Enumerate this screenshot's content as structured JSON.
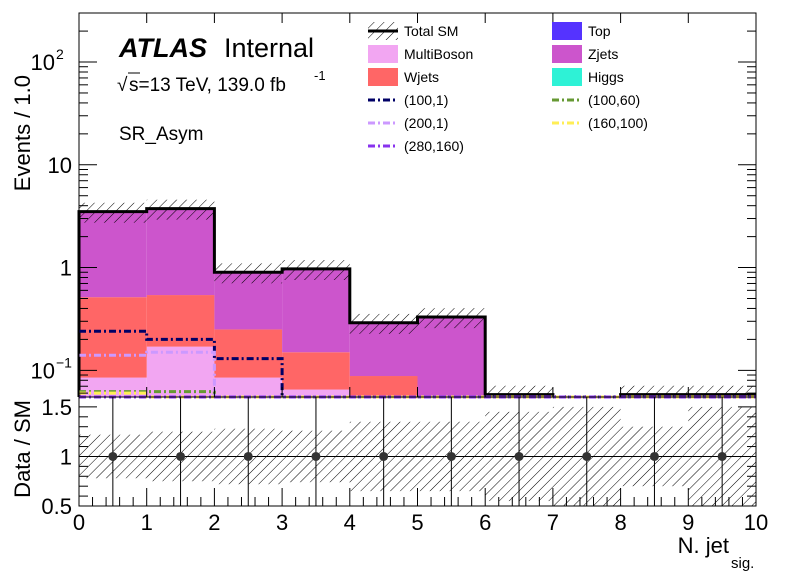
{
  "chart_data": [
    {
      "type": "bar",
      "panel": "main",
      "stacked": true,
      "ylabel": "Events / 1.0",
      "yscale": "log",
      "ylim": [
        0.055,
        300
      ],
      "xlim": [
        0,
        10
      ],
      "bin_edges": [
        0,
        1,
        2,
        3,
        4,
        5,
        6,
        7,
        8,
        9,
        10
      ],
      "y_tick_labels": [
        {
          "value": 0.1,
          "base": "10",
          "exp": "−1"
        },
        {
          "value": 1,
          "base": "1",
          "exp": ""
        },
        {
          "value": 10,
          "base": "10",
          "exp": ""
        },
        {
          "value": 100,
          "base": "10",
          "exp": "2"
        }
      ],
      "atlas_label": "ATLAS",
      "internal_label": "Internal",
      "energy_label": "s=13 TeV, 139.0 fb",
      "energy_sqrt": "√",
      "lumi_exp": "-1",
      "region_label": "SR_Asym",
      "stack": [
        {
          "name": "Higgs",
          "color": "#2ef2d6",
          "values": [
            0,
            0,
            0,
            0,
            0,
            0,
            0,
            0,
            0,
            0
          ]
        },
        {
          "name": "MultiBoson",
          "color": "#f2a6f2",
          "values": [
            0.085,
            0.17,
            0.085,
            0.065,
            0,
            0,
            0,
            0,
            0,
            0
          ]
        },
        {
          "name": "Wjets",
          "color": "#ff6666",
          "values": [
            0.43,
            0.37,
            0.165,
            0.085,
            0.088,
            0,
            0,
            0,
            0,
            0
          ]
        },
        {
          "name": "Top",
          "color": "#5533ff",
          "values": [
            0,
            0,
            0,
            0,
            0,
            0,
            0,
            0,
            0,
            0
          ]
        },
        {
          "name": "Zjets",
          "color": "#cc55cc",
          "values": [
            2.99,
            3.21,
            0.65,
            0.82,
            0.202,
            0.33,
            0,
            0.047,
            0,
            0
          ]
        }
      ],
      "total": {
        "name": "Total SM",
        "color": "#000000",
        "values": [
          3.5,
          3.75,
          0.9,
          0.97,
          0.29,
          0.33,
          0.058,
          0.047,
          0.058,
          0.058
        ],
        "unc_frac": 0.22
      },
      "signals": [
        {
          "name": "(100,1)",
          "color": "#000066",
          "values": [
            0.24,
            0.2,
            0.13,
            0,
            0,
            0,
            0,
            0,
            0,
            0
          ]
        },
        {
          "name": "(100,60)",
          "color": "#669933",
          "values": [
            0.062,
            0.062,
            0,
            0,
            0,
            0,
            0,
            0,
            0,
            0
          ]
        },
        {
          "name": "(200,1)",
          "color": "#cc99ff",
          "values": [
            0.14,
            0.15,
            0,
            0,
            0,
            0,
            0,
            0,
            0,
            0
          ]
        },
        {
          "name": "(160,100)",
          "color": "#ffee55",
          "values": [
            0.06,
            0,
            0,
            0,
            0,
            0,
            0,
            0,
            0,
            0
          ]
        },
        {
          "name": "(280,160)",
          "color": "#8833ee",
          "values": [
            0,
            0,
            0,
            0,
            0,
            0,
            0,
            0,
            0,
            0
          ]
        }
      ],
      "legend": {
        "placement": "top-right",
        "entries": [
          {
            "label": "Total SM",
            "kind": "hatchline",
            "color": "#000000"
          },
          {
            "label": "Top",
            "kind": "box",
            "color": "#5533ff"
          },
          {
            "label": "MultiBoson",
            "kind": "box",
            "color": "#f2a6f2"
          },
          {
            "label": "Zjets",
            "kind": "box",
            "color": "#cc55cc"
          },
          {
            "label": "Wjets",
            "kind": "box",
            "color": "#ff6666"
          },
          {
            "label": "Higgs",
            "kind": "box",
            "color": "#2ef2d6"
          },
          {
            "label": "(100,1)",
            "kind": "dash",
            "color": "#000066"
          },
          {
            "label": "(100,60)",
            "kind": "dash",
            "color": "#669933"
          },
          {
            "label": "(200,1)",
            "kind": "dash",
            "color": "#cc99ff"
          },
          {
            "label": "(160,100)",
            "kind": "dash",
            "color": "#ffee55"
          },
          {
            "label": "(280,160)",
            "kind": "dash",
            "color": "#8833ee"
          }
        ]
      }
    },
    {
      "type": "scatter",
      "panel": "ratio",
      "ylabel": "Data / SM",
      "xlabel": "N. jet",
      "xlabel_sub": "sig.",
      "ylim": [
        0.5,
        1.6
      ],
      "y_ticks": [
        0.5,
        1,
        1.5
      ],
      "y_tick_labels": [
        "0.5",
        "1",
        "1.5"
      ],
      "xlim": [
        0,
        10
      ],
      "x_ticks": [
        0,
        1,
        2,
        3,
        4,
        5,
        6,
        7,
        8,
        9,
        10
      ],
      "x_tick_labels": [
        "0",
        "1",
        "2",
        "3",
        "4",
        "5",
        "6",
        "7",
        "8",
        "9",
        "10"
      ],
      "x": [
        0.5,
        1.5,
        2.5,
        3.5,
        4.5,
        5.5,
        6.5,
        7.5,
        8.5,
        9.5
      ],
      "y": [
        1,
        1,
        1,
        1,
        1,
        1,
        1,
        1,
        1,
        1
      ],
      "unc_band": [
        0.22,
        0.25,
        0.28,
        0.26,
        0.35,
        0.35,
        0.45,
        0.5,
        0.3,
        0.5
      ],
      "point_color": "#333333"
    }
  ]
}
